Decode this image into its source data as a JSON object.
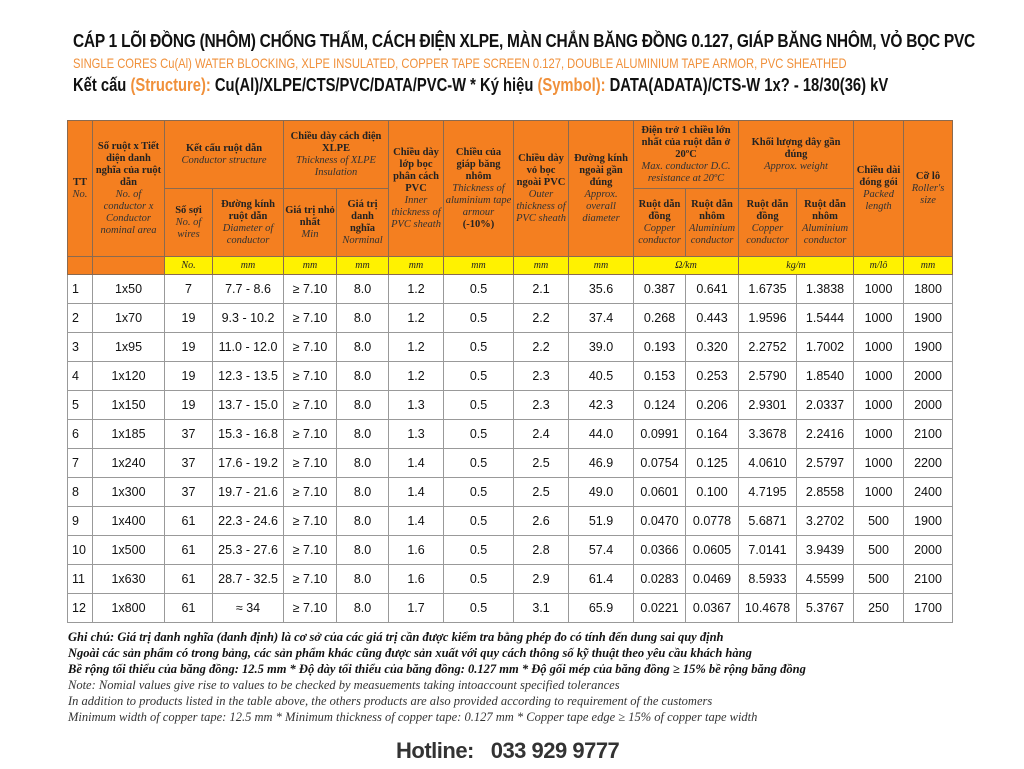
{
  "title": "CÁP 1 LÕI ĐỒNG (NHÔM) CHỐNG THẤM, CÁCH ĐIỆN XLPE, MÀN CHẮN BĂNG ĐỒNG 0.127, GIÁP BĂNG NHÔM,  VỎ BỌC PVC",
  "subtitle": "SINGLE CORES Cu(Al) WATER BLOCKING, XLPE INSULATED, COPPER TAPE SCREEN 0.127, DOUBLE ALUMINIUM TAPE ARMOR,  PVC SHEATHED",
  "structure": {
    "label": "Kết cấu",
    "label_en": "(Structure):",
    "value": " Cu(Al)/XLPE/CTS/PVC/DATA/PVC-W  * ",
    "sym_label": "Ký hiệu",
    "sym_en": "(Symbol):",
    "sym_value": " DATA(ADATA)/CTS-W 1x? - 18/30(36) kV"
  },
  "header": {
    "tt": "TT",
    "tt_en": "No.",
    "size": "Số ruột x Tiết diện danh nghĩa của ruột dẫn",
    "size_en": "No. of conductor x Conductor nominal area",
    "cond": "Kết cấu ruột dẫn",
    "cond_en": "Conductor structure",
    "wires": "Số sợi",
    "wires_en": "No. of wires",
    "diam": "Đường kính ruột dẫn",
    "diam_en": "Diameter of conductor",
    "ins": "Chiều dày cách điện XLPE",
    "ins_en": "Thickness of XLPE Insulation",
    "min": "Giá trị nhỏ nhất",
    "min_en": "Min",
    "nom": "Giá trị danh nghĩa",
    "nom_en": "Norminal",
    "inner": "Chiều dày lớp bọc phân cách PVC",
    "inner_en": "Inner thickness of PVC sheath",
    "armour": "Chiều của giáp băng nhôm",
    "armour_en": "Thickness of aluminium tape armour",
    "armour_tol": "(-10%)",
    "outer": "Chiều dày vỏ bọc ngoài PVC",
    "outer_en": "Outer thickness of PVC sheath",
    "overall": "Đường kính ngoài gần đúng",
    "overall_en": "Approx. overall diameter",
    "res": "Điện trở 1 chiều lớn nhất của ruột dẫn ở 20ºC",
    "res_en": "Max. conductor D.C. resistance at 20ºC",
    "weight": "Khối lượng dây gần đúng",
    "weight_en": "Approx. weight",
    "cu": "Ruột dẫn đồng",
    "cu_en": "Copper conductor",
    "al": "Ruột dẫn nhôm",
    "al_en": "Aluminium conductor",
    "length": "Chiều dài đóng gói",
    "length_en": "Packed length",
    "roller": "Cỡ lô",
    "roller_en": "Roller's size"
  },
  "units": [
    "No.",
    "mm",
    "mm",
    "mm",
    "mm",
    "mm",
    "mm",
    "mm",
    "Ω/km",
    "kg/m",
    "m/lô",
    "mm"
  ],
  "rows": [
    [
      "1",
      "1x50",
      "7",
      "7.7 - 8.6",
      "≥ 7.10",
      "8.0",
      "1.2",
      "0.5",
      "2.1",
      "35.6",
      "0.387",
      "0.641",
      "1.6735",
      "1.3838",
      "1000",
      "1800"
    ],
    [
      "2",
      "1x70",
      "19",
      "9.3 - 10.2",
      "≥ 7.10",
      "8.0",
      "1.2",
      "0.5",
      "2.2",
      "37.4",
      "0.268",
      "0.443",
      "1.9596",
      "1.5444",
      "1000",
      "1900"
    ],
    [
      "3",
      "1x95",
      "19",
      "11.0 - 12.0",
      "≥ 7.10",
      "8.0",
      "1.2",
      "0.5",
      "2.2",
      "39.0",
      "0.193",
      "0.320",
      "2.2752",
      "1.7002",
      "1000",
      "1900"
    ],
    [
      "4",
      "1x120",
      "19",
      "12.3 - 13.5",
      "≥ 7.10",
      "8.0",
      "1.2",
      "0.5",
      "2.3",
      "40.5",
      "0.153",
      "0.253",
      "2.5790",
      "1.8540",
      "1000",
      "2000"
    ],
    [
      "5",
      "1x150",
      "19",
      "13.7 - 15.0",
      "≥ 7.10",
      "8.0",
      "1.3",
      "0.5",
      "2.3",
      "42.3",
      "0.124",
      "0.206",
      "2.9301",
      "2.0337",
      "1000",
      "2000"
    ],
    [
      "6",
      "1x185",
      "37",
      "15.3 - 16.8",
      "≥ 7.10",
      "8.0",
      "1.3",
      "0.5",
      "2.4",
      "44.0",
      "0.0991",
      "0.164",
      "3.3678",
      "2.2416",
      "1000",
      "2100"
    ],
    [
      "7",
      "1x240",
      "37",
      "17.6 - 19.2",
      "≥ 7.10",
      "8.0",
      "1.4",
      "0.5",
      "2.5",
      "46.9",
      "0.0754",
      "0.125",
      "4.0610",
      "2.5797",
      "1000",
      "2200"
    ],
    [
      "8",
      "1x300",
      "37",
      "19.7 - 21.6",
      "≥ 7.10",
      "8.0",
      "1.4",
      "0.5",
      "2.5",
      "49.0",
      "0.0601",
      "0.100",
      "4.7195",
      "2.8558",
      "1000",
      "2400"
    ],
    [
      "9",
      "1x400",
      "61",
      "22.3 - 24.6",
      "≥ 7.10",
      "8.0",
      "1.4",
      "0.5",
      "2.6",
      "51.9",
      "0.0470",
      "0.0778",
      "5.6871",
      "3.2702",
      "500",
      "1900"
    ],
    [
      "10",
      "1x500",
      "61",
      "25.3 - 27.6",
      "≥ 7.10",
      "8.0",
      "1.6",
      "0.5",
      "2.8",
      "57.4",
      "0.0366",
      "0.0605",
      "7.0141",
      "3.9439",
      "500",
      "2000"
    ],
    [
      "11",
      "1x630",
      "61",
      "28.7 - 32.5",
      "≥ 7.10",
      "8.0",
      "1.6",
      "0.5",
      "2.9",
      "61.4",
      "0.0283",
      "0.0469",
      "8.5933",
      "4.5599",
      "500",
      "2100"
    ],
    [
      "12",
      "1x800",
      "61",
      "≈ 34",
      "≥ 7.10",
      "8.0",
      "1.7",
      "0.5",
      "3.1",
      "65.9",
      "0.0221",
      "0.0367",
      "10.4678",
      "5.3767",
      "250",
      "1700"
    ]
  ],
  "notes": [
    "Ghi chú: Giá trị danh nghĩa (danh định) là cơ sở của các giá trị cần được kiểm tra bằng phép đo có tính đến dung sai quy định",
    "Ngoài các sản phẩm có trong bảng, các sản phẩm khác cũng được sản xuất với quy cách thông số kỹ thuật theo yêu cầu khách hàng",
    "Bề rộng tối thiểu của băng đồng: 12.5 mm * Độ dày tối thiểu của băng đồng: 0.127 mm * Độ gối mép của băng đồng ≥ 15% bề rộng băng đồng",
    "Note: Nomial values give rise to values to be checked by measuements taking intoaccount specified tolerances",
    "In addition to products listed in the table above, the others products are also provided according to requirement of the customers",
    "Minimum width of copper tape: 12.5 mm * Minimum thickness of copper tape: 0.127 mm * Copper tape edge ≥ 15% of copper tape width"
  ],
  "hotline": "Hotline:   033 929 9777",
  "colors": {
    "header": "#f47f20",
    "units": "#fff200",
    "accent": "#f0903a"
  }
}
